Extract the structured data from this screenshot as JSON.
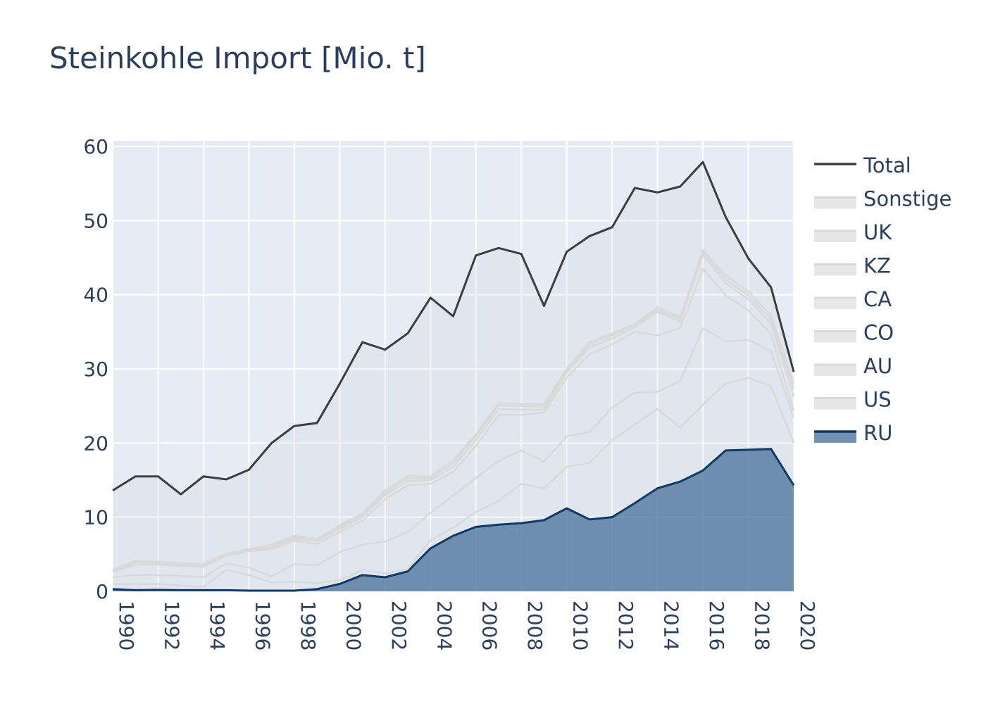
{
  "chart_data": {
    "type": "area",
    "title": "Steinkohle Import [Mio. t]",
    "xlabel": "",
    "ylabel": "",
    "xlim": [
      1990,
      2020
    ],
    "ylim": [
      0,
      60
    ],
    "grid": true,
    "legend_position": "right",
    "x": [
      1990,
      1991,
      1992,
      1993,
      1994,
      1995,
      1996,
      1997,
      1998,
      1999,
      2000,
      2001,
      2002,
      2003,
      2004,
      2005,
      2006,
      2007,
      2008,
      2009,
      2010,
      2011,
      2012,
      2013,
      2014,
      2015,
      2016,
      2017,
      2018,
      2019,
      2020
    ],
    "x_ticks": [
      "1990",
      "1992",
      "1994",
      "1996",
      "1998",
      "2000",
      "2002",
      "2004",
      "2006",
      "2008",
      "2010",
      "2012",
      "2014",
      "2016",
      "2018",
      "2020"
    ],
    "y_ticks": [
      "0",
      "10",
      "20",
      "30",
      "40",
      "50",
      "60"
    ],
    "stacked_cumulative": [
      {
        "name": "RU",
        "color": "#0d3a66",
        "fill": "rgba(75,115,155,0.78)",
        "values": [
          0.3,
          0.15,
          0.2,
          0.15,
          0.15,
          0.15,
          0.1,
          0.1,
          0.1,
          0.3,
          1.0,
          2.2,
          1.9,
          2.7,
          5.8,
          7.5,
          8.7,
          9.0,
          9.2,
          9.6,
          11.2,
          9.7,
          10.0,
          11.9,
          13.9,
          14.8,
          16.3,
          19.0,
          19.1,
          19.2,
          14.3
        ]
      },
      {
        "name": "US",
        "color": "#d9d9d9",
        "fill": "rgba(210,210,210,0.2)",
        "values": [
          1.0,
          1.0,
          1.0,
          0.8,
          0.6,
          2.9,
          2.2,
          1.2,
          1.3,
          1.1,
          1.5,
          2.9,
          2.4,
          3.0,
          6.9,
          8.6,
          10.7,
          12.2,
          14.5,
          13.9,
          16.8,
          17.3,
          20.4,
          22.5,
          24.6,
          22.1,
          25.2,
          28.0,
          28.8,
          27.7,
          20.0
        ]
      },
      {
        "name": "AU",
        "color": "#d9d9d9",
        "fill": "rgba(210,210,210,0.2)",
        "values": [
          1.9,
          2.2,
          2.2,
          2.1,
          1.9,
          3.8,
          3.2,
          2.0,
          3.7,
          3.5,
          5.3,
          6.3,
          6.7,
          8.0,
          10.6,
          12.9,
          15.3,
          17.6,
          19.0,
          17.5,
          20.9,
          21.5,
          24.8,
          26.8,
          26.9,
          28.4,
          35.5,
          33.7,
          33.9,
          32.4,
          23.4
        ]
      },
      {
        "name": "CO",
        "color": "#d9d9d9",
        "fill": "rgba(210,210,210,0.2)",
        "values": [
          2.6,
          3.6,
          3.6,
          3.4,
          3.3,
          4.8,
          5.4,
          5.7,
          6.8,
          6.4,
          8.0,
          9.5,
          12.4,
          14.3,
          14.5,
          16.1,
          19.6,
          23.8,
          23.8,
          24.1,
          28.8,
          32.0,
          33.3,
          35.0,
          34.5,
          35.5,
          43.5,
          39.9,
          37.9,
          34.7,
          24.3
        ]
      },
      {
        "name": "CA",
        "color": "#d9d9d9",
        "fill": "rgba(210,210,210,0.2)",
        "values": [
          2.7,
          3.9,
          3.8,
          3.6,
          3.5,
          4.9,
          5.5,
          5.9,
          7.1,
          6.8,
          8.4,
          10.0,
          13.0,
          14.9,
          15.0,
          16.8,
          20.4,
          24.6,
          24.5,
          24.5,
          29.5,
          32.9,
          34.1,
          35.6,
          37.7,
          36.4,
          45.4,
          41.6,
          39.4,
          36.1,
          26.3
        ]
      },
      {
        "name": "KZ",
        "color": "#d9d9d9",
        "fill": "rgba(210,210,210,0.2)",
        "values": [
          2.8,
          4.0,
          3.9,
          3.7,
          3.6,
          5.0,
          5.6,
          6.1,
          7.3,
          7.0,
          8.7,
          10.3,
          13.3,
          15.3,
          15.3,
          17.3,
          20.9,
          25.1,
          25.0,
          24.9,
          29.8,
          33.3,
          34.5,
          35.9,
          38.0,
          36.7,
          45.8,
          42.1,
          39.9,
          36.7,
          27.3
        ]
      },
      {
        "name": "UK",
        "color": "#d9d9d9",
        "fill": "rgba(210,210,210,0.2)",
        "values": [
          2.9,
          4.1,
          4.0,
          3.8,
          3.7,
          5.1,
          5.7,
          6.3,
          7.5,
          7.1,
          8.9,
          10.5,
          13.6,
          15.6,
          15.5,
          17.7,
          21.2,
          25.4,
          25.3,
          25.2,
          30.0,
          33.6,
          34.8,
          36.1,
          38.3,
          37.0,
          46.0,
          42.6,
          40.4,
          37.2,
          28.0
        ]
      },
      {
        "name": "Sonstige",
        "color": "#d9d9d9",
        "fill": "rgba(210,210,210,0.25)",
        "values": [
          13.6,
          15.5,
          15.5,
          13.1,
          15.5,
          15.1,
          16.4,
          20.0,
          22.3,
          22.7,
          28.0,
          33.6,
          32.6,
          34.8,
          39.6,
          37.1,
          45.3,
          46.3,
          45.5,
          38.5,
          45.8,
          47.9,
          49.1,
          54.4,
          53.8,
          54.6,
          57.9,
          50.5,
          44.9,
          41.0,
          29.6
        ]
      },
      {
        "name": "Total",
        "color": "#3d3d3d",
        "fill": "none",
        "values": [
          13.6,
          15.5,
          15.5,
          13.1,
          15.5,
          15.1,
          16.4,
          20.0,
          22.3,
          22.7,
          28.0,
          33.6,
          32.6,
          34.8,
          39.6,
          37.1,
          45.3,
          46.3,
          45.5,
          38.5,
          45.8,
          47.9,
          49.1,
          54.4,
          53.8,
          54.6,
          57.9,
          50.5,
          44.9,
          41.0,
          29.6
        ]
      }
    ],
    "legend": [
      "Total",
      "Sonstige",
      "UK",
      "KZ",
      "CA",
      "CO",
      "AU",
      "US",
      "RU"
    ]
  }
}
